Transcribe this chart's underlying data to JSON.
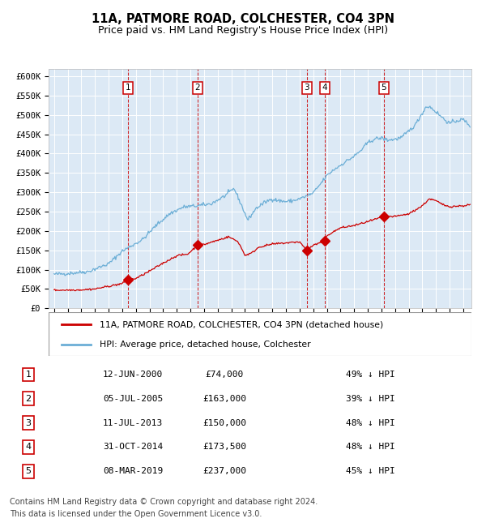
{
  "title_line1": "11A, PATMORE ROAD, COLCHESTER, CO4 3PN",
  "title_line2": "Price paid vs. HM Land Registry's House Price Index (HPI)",
  "ylim": [
    0,
    620000
  ],
  "xlim_start": 1994.6,
  "xlim_end": 2025.6,
  "background_color": "#ffffff",
  "plot_bg_color": "#dce9f5",
  "grid_color": "#ffffff",
  "hpi_color": "#6baed6",
  "price_color": "#cc0000",
  "transactions": [
    {
      "num": 1,
      "date": "12-JUN-2000",
      "price": 74000,
      "pct": "49%",
      "year": 2000.44
    },
    {
      "num": 2,
      "date": "05-JUL-2005",
      "price": 163000,
      "pct": "39%",
      "year": 2005.51
    },
    {
      "num": 3,
      "date": "11-JUL-2013",
      "price": 150000,
      "pct": "48%",
      "year": 2013.52
    },
    {
      "num": 4,
      "date": "31-OCT-2014",
      "price": 173500,
      "pct": "48%",
      "year": 2014.83
    },
    {
      "num": 5,
      "date": "08-MAR-2019",
      "price": 237000,
      "pct": "45%",
      "year": 2019.18
    }
  ],
  "legend_label_price": "11A, PATMORE ROAD, COLCHESTER, CO4 3PN (detached house)",
  "legend_label_hpi": "HPI: Average price, detached house, Colchester",
  "footnote_line1": "Contains HM Land Registry data © Crown copyright and database right 2024.",
  "footnote_line2": "This data is licensed under the Open Government Licence v3.0.",
  "yticks": [
    0,
    50000,
    100000,
    150000,
    200000,
    250000,
    300000,
    350000,
    400000,
    450000,
    500000,
    550000,
    600000
  ],
  "ytick_labels": [
    "£0",
    "£50K",
    "£100K",
    "£150K",
    "£200K",
    "£250K",
    "£300K",
    "£350K",
    "£400K",
    "£450K",
    "£500K",
    "£550K",
    "£600K"
  ],
  "hpi_anchors": [
    [
      1995.0,
      88000
    ],
    [
      1996.0,
      90000
    ],
    [
      1997.5,
      95000
    ],
    [
      1999.0,
      115000
    ],
    [
      2000.0,
      148000
    ],
    [
      2001.5,
      178000
    ],
    [
      2002.5,
      215000
    ],
    [
      2003.5,
      245000
    ],
    [
      2004.5,
      262000
    ],
    [
      2005.5,
      265000
    ],
    [
      2006.5,
      270000
    ],
    [
      2007.5,
      290000
    ],
    [
      2008.2,
      310000
    ],
    [
      2008.7,
      270000
    ],
    [
      2009.2,
      228000
    ],
    [
      2009.8,
      258000
    ],
    [
      2010.5,
      275000
    ],
    [
      2011.0,
      283000
    ],
    [
      2011.5,
      278000
    ],
    [
      2012.0,
      276000
    ],
    [
      2012.5,
      278000
    ],
    [
      2013.0,
      283000
    ],
    [
      2013.5,
      290000
    ],
    [
      2014.0,
      298000
    ],
    [
      2014.5,
      320000
    ],
    [
      2015.0,
      343000
    ],
    [
      2015.5,
      358000
    ],
    [
      2016.0,
      370000
    ],
    [
      2016.5,
      382000
    ],
    [
      2017.0,
      393000
    ],
    [
      2017.5,
      408000
    ],
    [
      2018.0,
      428000
    ],
    [
      2018.5,
      438000
    ],
    [
      2019.0,
      440000
    ],
    [
      2019.5,
      435000
    ],
    [
      2020.0,
      437000
    ],
    [
      2020.5,
      442000
    ],
    [
      2021.0,
      458000
    ],
    [
      2021.5,
      475000
    ],
    [
      2022.0,
      505000
    ],
    [
      2022.3,
      522000
    ],
    [
      2022.6,
      520000
    ],
    [
      2023.0,
      508000
    ],
    [
      2023.5,
      492000
    ],
    [
      2024.0,
      478000
    ],
    [
      2024.5,
      485000
    ],
    [
      2025.0,
      488000
    ],
    [
      2025.5,
      472000
    ]
  ],
  "price_anchors": [
    [
      1995.0,
      47000
    ],
    [
      1996.0,
      47200
    ],
    [
      1997.0,
      47800
    ],
    [
      1998.0,
      50000
    ],
    [
      1999.0,
      57000
    ],
    [
      2000.0,
      64000
    ],
    [
      2000.44,
      74000
    ],
    [
      2001.0,
      77000
    ],
    [
      2002.0,
      96000
    ],
    [
      2003.0,
      117000
    ],
    [
      2004.0,
      136000
    ],
    [
      2004.8,
      140000
    ],
    [
      2005.51,
      163000
    ],
    [
      2006.0,
      165000
    ],
    [
      2007.0,
      176000
    ],
    [
      2007.8,
      185000
    ],
    [
      2008.5,
      172000
    ],
    [
      2009.0,
      137000
    ],
    [
      2009.5,
      143000
    ],
    [
      2010.0,
      158000
    ],
    [
      2011.0,
      166000
    ],
    [
      2012.0,
      169000
    ],
    [
      2013.0,
      172000
    ],
    [
      2013.52,
      150000
    ],
    [
      2014.0,
      163000
    ],
    [
      2014.83,
      173500
    ],
    [
      2015.0,
      188000
    ],
    [
      2016.0,
      208000
    ],
    [
      2017.0,
      214000
    ],
    [
      2018.0,
      224000
    ],
    [
      2019.18,
      237000
    ],
    [
      2019.5,
      237000
    ],
    [
      2020.0,
      237500
    ],
    [
      2021.0,
      244000
    ],
    [
      2022.0,
      265000
    ],
    [
      2022.5,
      283000
    ],
    [
      2023.0,
      278000
    ],
    [
      2023.5,
      268000
    ],
    [
      2024.0,
      263000
    ],
    [
      2025.0,
      265000
    ],
    [
      2025.5,
      268000
    ]
  ]
}
